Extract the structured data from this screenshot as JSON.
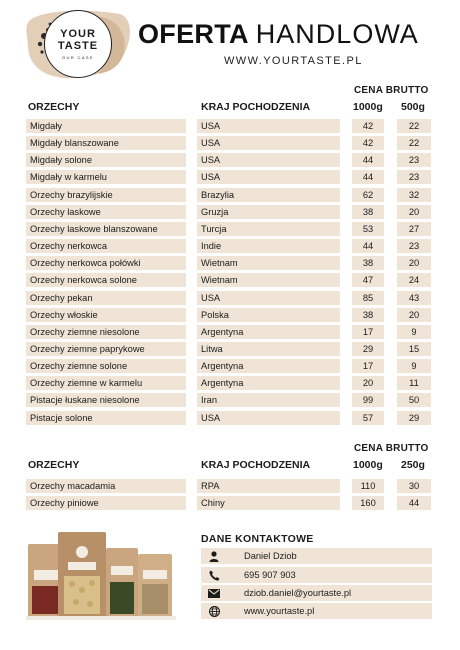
{
  "logo": {
    "line1": "YOUR",
    "line2": "TASTE",
    "line3": "OUR CASE"
  },
  "header": {
    "title_bold": "OFERTA",
    "title_light": "HANDLOWA",
    "website": "WWW.YOURTASTE.PL"
  },
  "table1": {
    "col_name": "ORZECHY",
    "col_country": "KRAJ POCHODZENIA",
    "price_header": "CENA BRUTTO",
    "col_p1": "1000g",
    "col_p2": "500g",
    "rows": [
      {
        "name": "Migdały",
        "country": "USA",
        "p1": "42",
        "p2": "22"
      },
      {
        "name": "Migdały blanszowane",
        "country": "USA",
        "p1": "42",
        "p2": "22"
      },
      {
        "name": "Migdały solone",
        "country": "USA",
        "p1": "44",
        "p2": "23"
      },
      {
        "name": "Migdały w karmelu",
        "country": "USA",
        "p1": "44",
        "p2": "23"
      },
      {
        "name": "Orzechy brazylijskie",
        "country": "Brazylia",
        "p1": "62",
        "p2": "32"
      },
      {
        "name": "Orzechy laskowe",
        "country": "Gruzja",
        "p1": "38",
        "p2": "20"
      },
      {
        "name": "Orzechy laskowe blanszowane",
        "country": "Turcja",
        "p1": "53",
        "p2": "27"
      },
      {
        "name": "Orzechy nerkowca",
        "country": "Indie",
        "p1": "44",
        "p2": "23"
      },
      {
        "name": "Orzechy nerkowca połówki",
        "country": "Wietnam",
        "p1": "38",
        "p2": "20"
      },
      {
        "name": "Orzechy nerkowca solone",
        "country": "Wietnam",
        "p1": "47",
        "p2": "24"
      },
      {
        "name": "Orzechy pekan",
        "country": "USA",
        "p1": "85",
        "p2": "43"
      },
      {
        "name": "Orzechy włoskie",
        "country": "Polska",
        "p1": "38",
        "p2": "20"
      },
      {
        "name": "Orzechy ziemne niesolone",
        "country": "Argentyna",
        "p1": "17",
        "p2": "9"
      },
      {
        "name": "Orzechy ziemne paprykowe",
        "country": "Litwa",
        "p1": "29",
        "p2": "15"
      },
      {
        "name": "Orzechy ziemne solone",
        "country": "Argentyna",
        "p1": "17",
        "p2": "9"
      },
      {
        "name": "Orzechy ziemne w karmelu",
        "country": "Argentyna",
        "p1": "20",
        "p2": "11"
      },
      {
        "name": "Pistacje łuskane niesolone",
        "country": "Iran",
        "p1": "99",
        "p2": "50"
      },
      {
        "name": "Pistacje solone",
        "country": "USA",
        "p1": "57",
        "p2": "29"
      }
    ]
  },
  "table2": {
    "col_name": "ORZECHY",
    "col_country": "KRAJ POCHODZENIA",
    "price_header": "CENA BRUTTO",
    "col_p1": "1000g",
    "col_p2": "250g",
    "rows": [
      {
        "name": "Orzechy macadamia",
        "country": "RPA",
        "p1": "110",
        "p2": "30"
      },
      {
        "name": "Orzechy piniowe",
        "country": "Chiny",
        "p1": "160",
        "p2": "44"
      }
    ]
  },
  "contact": {
    "title": "DANE KONTAKTOWE",
    "rows": [
      {
        "icon": "person-icon",
        "text": "Daniel Dziob"
      },
      {
        "icon": "phone-icon",
        "text": "695 907 903"
      },
      {
        "icon": "mail-icon",
        "text": "dziob.daniel@yourtaste.pl"
      },
      {
        "icon": "globe-icon",
        "text": "www.yourtaste.pl"
      }
    ]
  },
  "colors": {
    "row_bg": "#efe4d6",
    "text": "#1c1c1c",
    "splash": "#d9c2a8"
  }
}
